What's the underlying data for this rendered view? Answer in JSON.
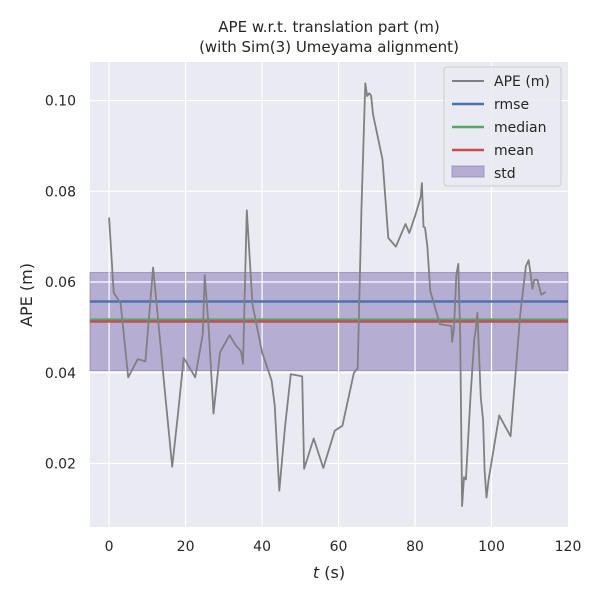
{
  "chart_data": {
    "type": "line",
    "title": "APE w.r.t. translation part (m)",
    "subtitle": "(with Sim(3) Umeyama alignment)",
    "xlabel_italic": "t",
    "xlabel_unit": " (s)",
    "ylabel": "APE (m)",
    "xlim": [
      -5,
      120
    ],
    "ylim": [
      0.006,
      0.1085
    ],
    "xticks": [
      0,
      20,
      40,
      60,
      80,
      100,
      120
    ],
    "xtick_labels": [
      "0",
      "20",
      "40",
      "60",
      "80",
      "100",
      "120"
    ],
    "yticks": [
      0.02,
      0.04,
      0.06,
      0.08,
      0.1
    ],
    "ytick_labels": [
      "0.02",
      "0.04",
      "0.06",
      "0.08",
      "0.10"
    ],
    "grid": true,
    "legend_position": "top-right",
    "colors": {
      "background": "#eaeaf2",
      "grid": "#ffffff",
      "ape": "#808080",
      "rmse": "#4c72b0",
      "median": "#55a868",
      "mean": "#c44e52",
      "std": "#8172b2"
    },
    "series": [
      {
        "name": "APE (m)",
        "x": [
          0,
          1.2,
          3,
          5,
          7.5,
          9.5,
          10.5,
          11.5,
          12.5,
          14.5,
          16.5,
          18,
          19.5,
          22.5,
          24.5,
          25,
          26,
          27.3,
          29,
          31.5,
          33,
          34.5,
          35,
          36,
          37.5,
          40,
          42.5,
          43.3,
          44.5,
          46,
          47.5,
          50.5,
          51,
          53.5,
          56,
          59,
          61,
          64,
          65,
          66,
          67,
          67.5,
          68,
          68.5,
          69,
          71.5,
          73,
          75,
          77.5,
          78.5,
          80,
          81.5,
          81.8,
          82.2,
          82.6,
          83.2,
          84,
          86.5,
          89.5,
          89.7,
          90.2,
          90.8,
          91.3,
          91.8,
          92.3,
          92.8,
          93.3,
          94.5,
          95.5,
          95.8,
          96.3,
          97.2,
          97.8,
          98.2,
          98.7,
          99.2,
          102,
          105,
          107.5,
          109,
          109.7,
          110.2,
          110.7,
          111.2,
          112,
          113,
          114.2
        ],
        "y": [
          0.0742,
          0.0577,
          0.0553,
          0.039,
          0.043,
          0.0425,
          0.053,
          0.0632,
          0.0545,
          0.0365,
          0.0193,
          0.031,
          0.0433,
          0.039,
          0.0485,
          0.0615,
          0.0505,
          0.031,
          0.0445,
          0.0483,
          0.0462,
          0.0447,
          0.042,
          0.0758,
          0.055,
          0.0445,
          0.0383,
          0.0328,
          0.014,
          0.028,
          0.0397,
          0.0392,
          0.0188,
          0.0255,
          0.019,
          0.0272,
          0.0283,
          0.04,
          0.041,
          0.0765,
          0.1038,
          0.101,
          0.1016,
          0.1011,
          0.097,
          0.087,
          0.0697,
          0.0678,
          0.0728,
          0.0708,
          0.0745,
          0.0788,
          0.0818,
          0.0722,
          0.072,
          0.068,
          0.058,
          0.0507,
          0.0503,
          0.0468,
          0.0498,
          0.0615,
          0.064,
          0.048,
          0.0106,
          0.017,
          0.0165,
          0.0347,
          0.0475,
          0.049,
          0.0532,
          0.0345,
          0.0295,
          0.0185,
          0.0125,
          0.0163,
          0.0306,
          0.026,
          0.0528,
          0.0635,
          0.0648,
          0.062,
          0.0585,
          0.0605,
          0.0605,
          0.0572,
          0.0578
        ]
      },
      {
        "name": "rmse",
        "value": 0.0557
      },
      {
        "name": "median",
        "value": 0.0517
      },
      {
        "name": "mean",
        "value": 0.0513
      },
      {
        "name": "std",
        "band": [
          0.0405,
          0.0621
        ]
      }
    ]
  }
}
